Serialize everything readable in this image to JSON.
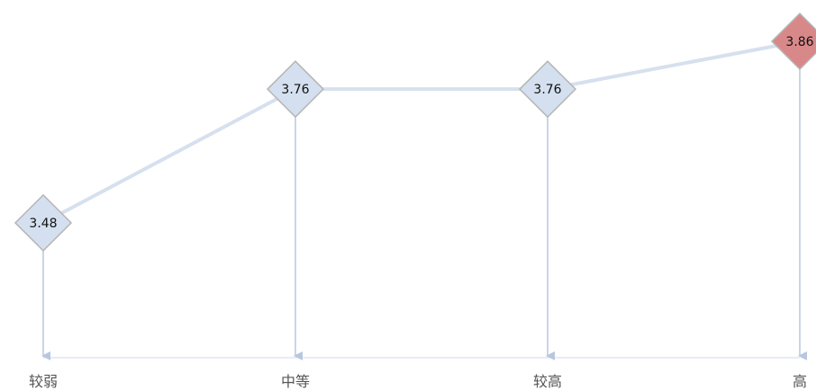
{
  "chart_data": {
    "type": "line",
    "categories": [
      "较弱",
      "中等",
      "较高",
      "高"
    ],
    "values": [
      3.48,
      3.76,
      3.76,
      3.86
    ],
    "labels": [
      "3.48",
      "3.76",
      "3.76",
      "3.86"
    ],
    "highlight_index": 3,
    "ylim": [
      3.3,
      3.9
    ],
    "grid": false,
    "legend": "none",
    "colors": {
      "line": "#d6e0ee",
      "marker": "#d4e0ef",
      "marker_stroke": "#b5b5b5",
      "highlight": "#d9888a",
      "stem": "#b8c7df",
      "baseline": "#d0d9e8"
    }
  }
}
